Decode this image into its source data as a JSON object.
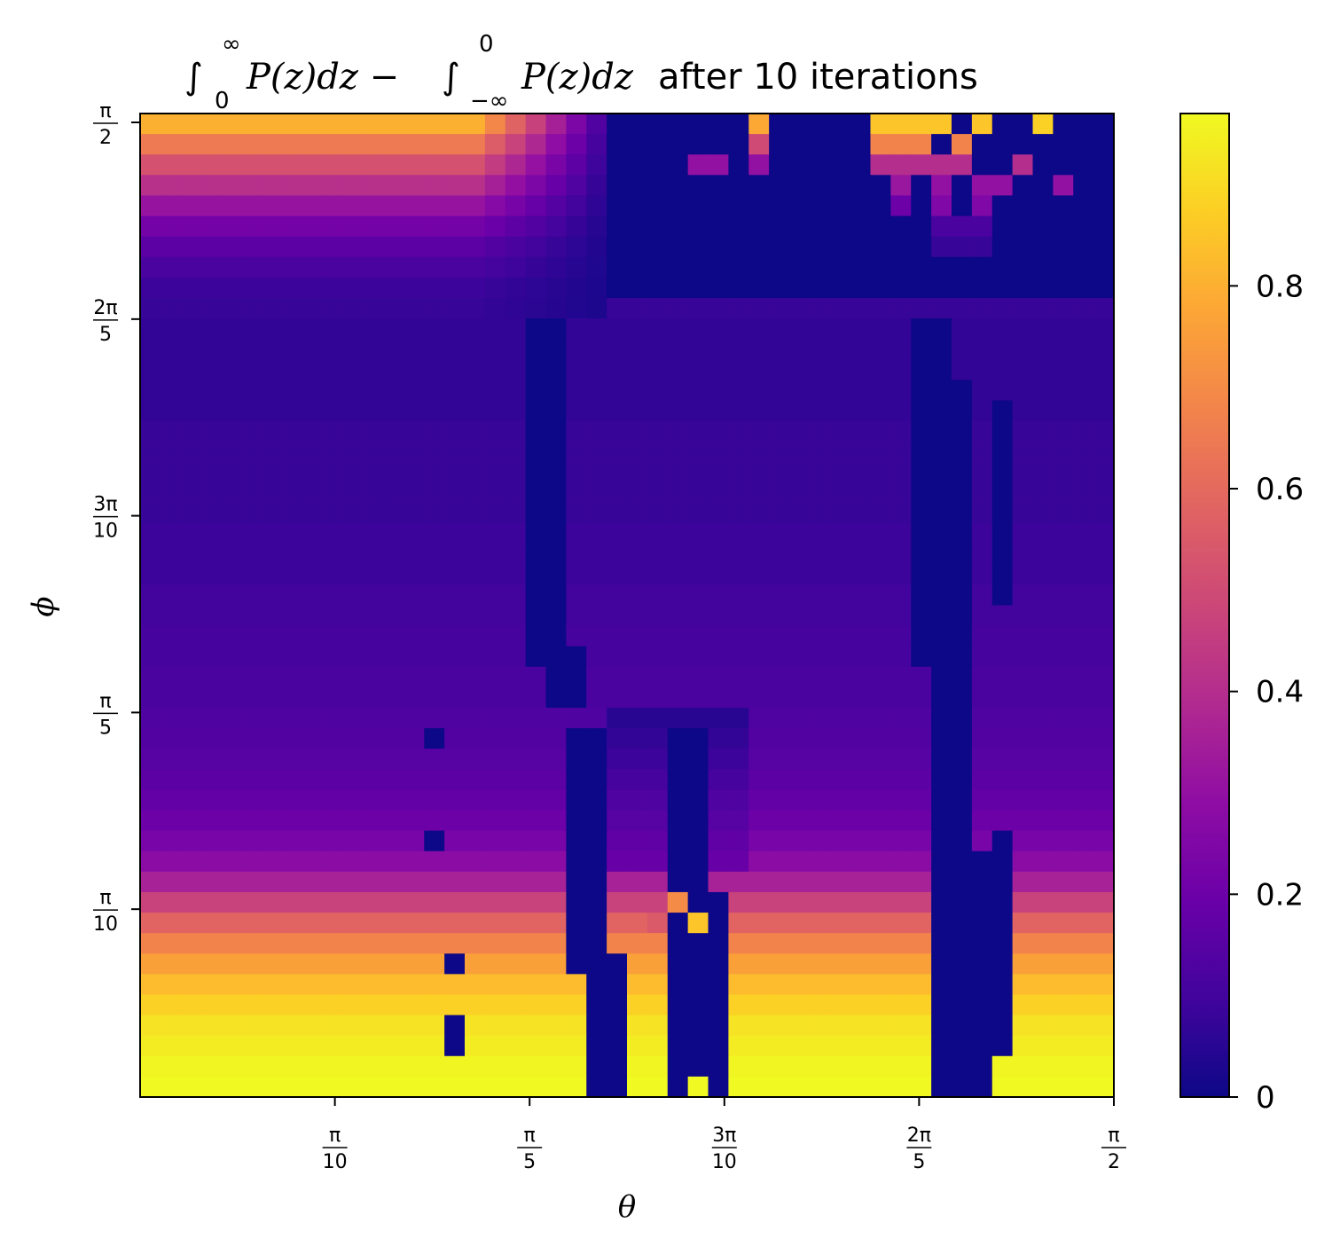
{
  "chart_data": {
    "type": "heatmap",
    "title": {
      "sym": "∫",
      "up1": "∞",
      "lo1": "0",
      "mid1": "P(z)dz − ",
      "up2": "0",
      "lo2": "−∞",
      "mid2": "P(z)dz",
      "tail": " after 10 iterations"
    },
    "xlabel": "θ",
    "ylabel": "ϕ",
    "xlim": [
      0,
      1.5708
    ],
    "ylim": [
      0,
      1.5708
    ],
    "x_ticks": [
      {
        "value": 0.3142,
        "num": "π",
        "den": "10"
      },
      {
        "value": 0.6283,
        "num": "π",
        "den": "5"
      },
      {
        "value": 0.9425,
        "num": "3π",
        "den": "10"
      },
      {
        "value": 1.2566,
        "num": "2π",
        "den": "5"
      },
      {
        "value": 1.5708,
        "num": "π",
        "den": "2"
      }
    ],
    "y_ticks": [
      {
        "value": 0.3142,
        "num": "π",
        "den": "10"
      },
      {
        "value": 0.6283,
        "num": "π",
        "den": "5"
      },
      {
        "value": 0.9425,
        "num": "3π",
        "den": "10"
      },
      {
        "value": 1.2566,
        "num": "2π",
        "den": "5"
      },
      {
        "value": 1.5708,
        "num": "π",
        "den": "2"
      }
    ],
    "colorbar": {
      "colormap": "plasma",
      "vmin": 0,
      "vmax": 0.97,
      "ticks": [
        {
          "value": 0,
          "label": "0"
        },
        {
          "value": 0.2,
          "label": "0.2"
        },
        {
          "value": 0.4,
          "label": "0.4"
        },
        {
          "value": 0.6,
          "label": "0.6"
        },
        {
          "value": 0.8,
          "label": "0.8"
        }
      ]
    },
    "grid_size": [
      48,
      48
    ],
    "base_profile": {
      "phi_rows_from_top": [
        0.8,
        0.65,
        0.52,
        0.41,
        0.31,
        0.22,
        0.16,
        0.12,
        0.09,
        0.08,
        0.07,
        0.07,
        0.07,
        0.07,
        0.07,
        0.08,
        0.08,
        0.08,
        0.08,
        0.08,
        0.09,
        0.09,
        0.09,
        0.1,
        0.1,
        0.11,
        0.11,
        0.12,
        0.12,
        0.13,
        0.14,
        0.15,
        0.16,
        0.18,
        0.2,
        0.23,
        0.28,
        0.36,
        0.47,
        0.58,
        0.68,
        0.76,
        0.83,
        0.88,
        0.92,
        0.94,
        0.96,
        0.97
      ],
      "top_decay_cols": [
        17,
        22
      ],
      "right_block_cols": [
        23,
        47
      ],
      "right_block_rows": [
        0,
        8
      ],
      "right_block_value": 0.0
    },
    "zero_regions": [
      {
        "c0": 19,
        "c1": 20,
        "r0": 10,
        "r1": 26
      },
      {
        "c0": 20,
        "c1": 21,
        "r0": 26,
        "r1": 28
      },
      {
        "c0": 21,
        "c1": 22,
        "r0": 30,
        "r1": 41
      },
      {
        "c0": 22,
        "c1": 23,
        "r0": 41,
        "r1": 47
      },
      {
        "c0": 26,
        "c1": 27,
        "r0": 30,
        "r1": 47
      },
      {
        "c0": 27,
        "c1": 28,
        "r0": 38,
        "r1": 47
      },
      {
        "c0": 38,
        "c1": 39,
        "r0": 10,
        "r1": 26
      },
      {
        "c0": 39,
        "c1": 40,
        "r0": 13,
        "r1": 47
      },
      {
        "c0": 40,
        "c1": 41,
        "r0": 36,
        "r1": 47
      },
      {
        "c0": 42,
        "c1": 42,
        "r0": 14,
        "r1": 23
      },
      {
        "c0": 42,
        "c1": 42,
        "r0": 35,
        "r1": 45
      },
      {
        "c0": 14,
        "c1": 14,
        "r0": 30,
        "r1": 30
      },
      {
        "c0": 14,
        "c1": 14,
        "r0": 35,
        "r1": 35
      },
      {
        "c0": 15,
        "c1": 15,
        "r0": 41,
        "r1": 41
      },
      {
        "c0": 15,
        "c1": 15,
        "r0": 44,
        "r1": 45
      }
    ],
    "bright_spots": [
      {
        "c": 30,
        "r": 0,
        "v": 0.78
      },
      {
        "c": 36,
        "r": 0,
        "v": 0.85
      },
      {
        "c": 37,
        "r": 0,
        "v": 0.85
      },
      {
        "c": 38,
        "r": 0,
        "v": 0.85
      },
      {
        "c": 39,
        "r": 0,
        "v": 0.85
      },
      {
        "c": 41,
        "r": 0,
        "v": 0.85
      },
      {
        "c": 44,
        "r": 0,
        "v": 0.88
      },
      {
        "c": 36,
        "r": 1,
        "v": 0.68
      },
      {
        "c": 37,
        "r": 1,
        "v": 0.68
      },
      {
        "c": 38,
        "r": 1,
        "v": 0.68
      },
      {
        "c": 40,
        "r": 1,
        "v": 0.68
      },
      {
        "c": 30,
        "r": 1,
        "v": 0.5
      },
      {
        "c": 36,
        "r": 2,
        "v": 0.4
      },
      {
        "c": 37,
        "r": 2,
        "v": 0.4
      },
      {
        "c": 38,
        "r": 2,
        "v": 0.4
      },
      {
        "c": 39,
        "r": 2,
        "v": 0.4
      },
      {
        "c": 40,
        "r": 2,
        "v": 0.4
      },
      {
        "c": 43,
        "r": 2,
        "v": 0.4
      },
      {
        "c": 27,
        "r": 2,
        "v": 0.3
      },
      {
        "c": 28,
        "r": 2,
        "v": 0.3
      },
      {
        "c": 30,
        "r": 2,
        "v": 0.3
      },
      {
        "c": 37,
        "r": 3,
        "v": 0.32
      },
      {
        "c": 39,
        "r": 3,
        "v": 0.3
      },
      {
        "c": 41,
        "r": 3,
        "v": 0.3
      },
      {
        "c": 42,
        "r": 3,
        "v": 0.3
      },
      {
        "c": 45,
        "r": 3,
        "v": 0.3
      },
      {
        "c": 39,
        "r": 4,
        "v": 0.25
      },
      {
        "c": 41,
        "r": 4,
        "v": 0.25
      },
      {
        "c": 37,
        "r": 4,
        "v": 0.2
      },
      {
        "c": 39,
        "r": 5,
        "v": 0.12
      },
      {
        "c": 40,
        "r": 5,
        "v": 0.12
      },
      {
        "c": 41,
        "r": 5,
        "v": 0.12
      },
      {
        "c": 39,
        "r": 6,
        "v": 0.08
      },
      {
        "c": 40,
        "r": 6,
        "v": 0.08
      },
      {
        "c": 41,
        "r": 6,
        "v": 0.08
      },
      {
        "c": 26,
        "r": 38,
        "v": 0.7
      },
      {
        "c": 27,
        "r": 39,
        "v": 0.85
      },
      {
        "c": 25,
        "r": 39,
        "v": 0.55
      },
      {
        "c": 27,
        "r": 47,
        "v": 0.97
      }
    ]
  }
}
